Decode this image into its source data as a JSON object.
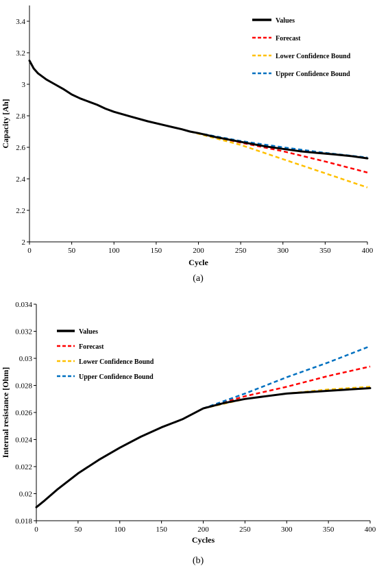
{
  "chart_data": [
    {
      "type": "line",
      "caption": "(a)",
      "xlabel": "Cycle",
      "ylabel": "Capacity [Ah]",
      "xlim": [
        0,
        400
      ],
      "ylim": [
        2,
        3.5
      ],
      "xticks": [
        0,
        50,
        100,
        150,
        200,
        250,
        300,
        350,
        400
      ],
      "yticks": [
        2,
        2.2,
        2.4,
        2.6,
        2.8,
        3,
        3.2,
        3.4
      ],
      "ytick_labels": [
        "2",
        "2.2",
        "2.4",
        "2.6",
        "2.8",
        "3",
        "3.2",
        "3.4"
      ],
      "grid": false,
      "legend_position": "top-right",
      "series": [
        {
          "name": "Values",
          "color": "#000000",
          "style": "solid",
          "x": [
            0,
            5,
            10,
            20,
            30,
            40,
            50,
            60,
            70,
            80,
            90,
            100,
            120,
            140,
            160,
            180,
            190,
            200,
            220,
            240,
            260,
            280,
            300,
            320,
            340,
            360,
            380,
            400
          ],
          "y": [
            3.15,
            3.1,
            3.07,
            3.03,
            3.0,
            2.97,
            2.935,
            2.91,
            2.89,
            2.87,
            2.845,
            2.825,
            2.795,
            2.765,
            2.74,
            2.715,
            2.7,
            2.69,
            2.665,
            2.645,
            2.625,
            2.605,
            2.59,
            2.575,
            2.565,
            2.555,
            2.545,
            2.53
          ]
        },
        {
          "name": "Forecast",
          "color": "#ff0000",
          "style": "dashed",
          "x": [
            190,
            250,
            300,
            350,
            400
          ],
          "y": [
            2.7,
            2.63,
            2.575,
            2.51,
            2.44
          ]
        },
        {
          "name": "Lower Confidence Bound",
          "color": "#ffc000",
          "style": "dashed",
          "x": [
            190,
            250,
            300,
            350,
            400
          ],
          "y": [
            2.7,
            2.615,
            2.525,
            2.435,
            2.345
          ]
        },
        {
          "name": "Upper Confidence Bound",
          "color": "#0070c0",
          "style": "dashed",
          "x": [
            190,
            250,
            300,
            350,
            400
          ],
          "y": [
            2.7,
            2.64,
            2.6,
            2.565,
            2.535
          ]
        }
      ]
    },
    {
      "type": "line",
      "caption": "(b)",
      "xlabel": "Cycles",
      "ylabel": "Internal resistance [Ohm]",
      "xlim": [
        0,
        400
      ],
      "ylim": [
        0.018,
        0.034
      ],
      "xticks": [
        0,
        50,
        100,
        150,
        200,
        250,
        300,
        350,
        400
      ],
      "yticks": [
        0.018,
        0.02,
        0.022,
        0.024,
        0.026,
        0.028,
        0.03,
        0.032,
        0.034
      ],
      "ytick_labels": [
        "0.018",
        "0.02",
        "0.022",
        "0.024",
        "0.026",
        "0.028",
        "0.03",
        "0.032",
        "0.034"
      ],
      "grid": false,
      "legend_position": "top-left",
      "series": [
        {
          "name": "Values",
          "color": "#000000",
          "style": "solid",
          "x": [
            0,
            10,
            25,
            50,
            75,
            100,
            125,
            150,
            175,
            200,
            225,
            250,
            275,
            300,
            325,
            350,
            375,
            400
          ],
          "y": [
            0.019,
            0.0195,
            0.0203,
            0.0215,
            0.0225,
            0.0234,
            0.0242,
            0.0249,
            0.0255,
            0.0263,
            0.0267,
            0.027,
            0.0272,
            0.0274,
            0.0275,
            0.0276,
            0.0277,
            0.0278
          ]
        },
        {
          "name": "Forecast",
          "color": "#ff0000",
          "style": "dashed",
          "x": [
            200,
            250,
            300,
            350,
            400
          ],
          "y": [
            0.0263,
            0.0272,
            0.0279,
            0.0287,
            0.0294
          ]
        },
        {
          "name": "Lower Confidence Bound",
          "color": "#ffc000",
          "style": "dashed",
          "x": [
            200,
            250,
            300,
            350,
            400
          ],
          "y": [
            0.0263,
            0.027,
            0.0274,
            0.0277,
            0.0279
          ]
        },
        {
          "name": "Upper Confidence Bound",
          "color": "#0070c0",
          "style": "dashed",
          "x": [
            200,
            250,
            300,
            350,
            400
          ],
          "y": [
            0.0263,
            0.0274,
            0.0286,
            0.0297,
            0.0309
          ]
        }
      ]
    }
  ]
}
